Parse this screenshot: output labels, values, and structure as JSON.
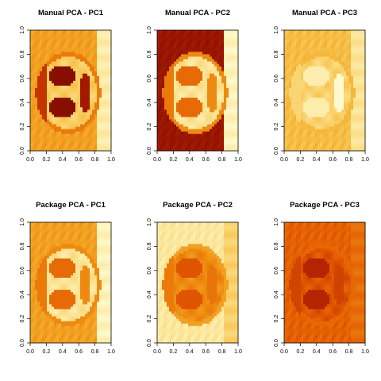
{
  "chart_data": [
    {
      "type": "heatmap",
      "title": "Manual PCA - PC1",
      "xlim": [
        0,
        1
      ],
      "ylim": [
        0,
        1
      ],
      "x_ticks": [
        "0.0",
        "0.2",
        "0.4",
        "0.6",
        "0.8",
        "1.0"
      ],
      "y_ticks": [
        "0.0",
        "0.2",
        "0.4",
        "0.6",
        "0.8",
        "1.0"
      ],
      "palette": "heat",
      "face_intensity": "dark",
      "background_level": 0.62
    },
    {
      "type": "heatmap",
      "title": "Manual PCA - PC2",
      "xlim": [
        0,
        1
      ],
      "ylim": [
        0,
        1
      ],
      "x_ticks": [
        "0.0",
        "0.2",
        "0.4",
        "0.6",
        "0.8",
        "1.0"
      ],
      "y_ticks": [
        "0.0",
        "0.2",
        "0.4",
        "0.6",
        "0.8",
        "1.0"
      ],
      "palette": "heat",
      "face_intensity": "light",
      "background_level": 0.12
    },
    {
      "type": "heatmap",
      "title": "Manual PCA - PC3",
      "xlim": [
        0,
        1
      ],
      "ylim": [
        0,
        1
      ],
      "x_ticks": [
        "0.0",
        "0.2",
        "0.4",
        "0.6",
        "0.8",
        "1.0"
      ],
      "y_ticks": [
        "0.0",
        "0.2",
        "0.4",
        "0.6",
        "0.8",
        "1.0"
      ],
      "palette": "heat",
      "face_intensity": "faint-light",
      "background_level": 0.72
    },
    {
      "type": "heatmap",
      "title": "Package PCA - PC1",
      "xlim": [
        0,
        1
      ],
      "ylim": [
        0,
        1
      ],
      "x_ticks": [
        "0.0",
        "0.2",
        "0.4",
        "0.6",
        "0.8",
        "1.0"
      ],
      "y_ticks": [
        "0.0",
        "0.2",
        "0.4",
        "0.6",
        "0.8",
        "1.0"
      ],
      "palette": "heat",
      "face_intensity": "light",
      "background_level": 0.62
    },
    {
      "type": "heatmap",
      "title": "Package PCA - PC2",
      "xlim": [
        0,
        1
      ],
      "ylim": [
        0,
        1
      ],
      "x_ticks": [
        "0.0",
        "0.2",
        "0.4",
        "0.6",
        "0.8",
        "1.0"
      ],
      "y_ticks": [
        "0.0",
        "0.2",
        "0.4",
        "0.6",
        "0.8",
        "1.0"
      ],
      "palette": "heat",
      "face_intensity": "medium",
      "background_level": 0.9
    },
    {
      "type": "heatmap",
      "title": "Package PCA - PC3",
      "xlim": [
        0,
        1
      ],
      "ylim": [
        0,
        1
      ],
      "x_ticks": [
        "0.0",
        "0.2",
        "0.4",
        "0.6",
        "0.8",
        "1.0"
      ],
      "y_ticks": [
        "0.0",
        "0.2",
        "0.4",
        "0.6",
        "0.8",
        "1.0"
      ],
      "palette": "heat",
      "face_intensity": "faint-dark",
      "background_level": 0.42
    }
  ]
}
